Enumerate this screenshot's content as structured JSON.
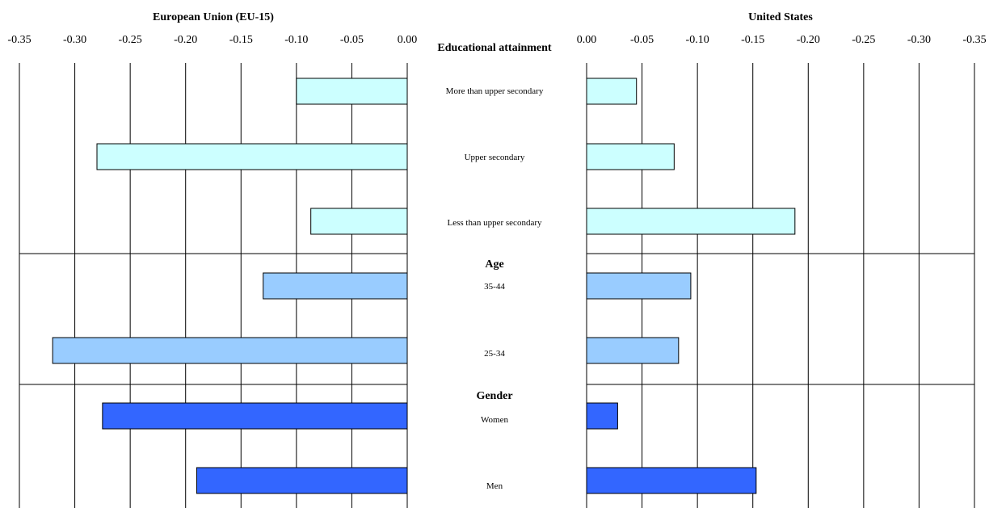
{
  "chart_data": {
    "type": "bar",
    "orientation": "horizontal",
    "panels": {
      "left": {
        "title": "European Union (EU-15)",
        "xlim": [
          -0.35,
          0.0
        ]
      },
      "right": {
        "title": "United States",
        "xlim": [
          0.0,
          -0.35
        ]
      }
    },
    "tick_labels": [
      "-0.35",
      "-0.30",
      "-0.25",
      "-0.20",
      "-0.15",
      "-0.10",
      "-0.05",
      "0.00"
    ],
    "tick_values": [
      -0.35,
      -0.3,
      -0.25,
      -0.2,
      -0.15,
      -0.1,
      -0.05,
      0.0
    ],
    "groups": [
      {
        "label": "Educational attainment",
        "categories": [
          "More than upper secondary",
          "Upper secondary",
          "Less than upper secondary"
        ],
        "color": "#ccffff"
      },
      {
        "label": "Age",
        "categories": [
          "35-44",
          "25-34"
        ],
        "color": "#99ccff"
      },
      {
        "label": "Gender",
        "categories": [
          "Women",
          "Men"
        ],
        "color": "#3366ff"
      }
    ],
    "categories": [
      "More than upper secondary",
      "Upper secondary",
      "Less than upper secondary",
      "35-44",
      "25-34",
      "Women",
      "Men"
    ],
    "series": [
      {
        "name": "European Union (EU-15)",
        "values": [
          -0.1,
          -0.28,
          -0.087,
          -0.13,
          -0.32,
          -0.275,
          -0.19
        ]
      },
      {
        "name": "United States",
        "values": [
          -0.045,
          -0.079,
          -0.188,
          -0.094,
          -0.083,
          -0.028,
          -0.153
        ]
      }
    ],
    "grid": true
  }
}
